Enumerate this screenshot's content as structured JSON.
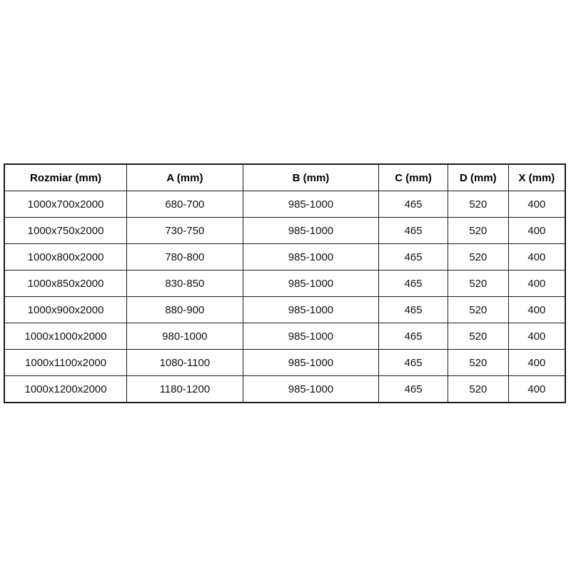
{
  "chart_data": {
    "type": "table",
    "title": "",
    "columns": [
      "Rozmiar (mm)",
      "A (mm)",
      "B (mm)",
      "C (mm)",
      "D (mm)",
      "X (mm)"
    ],
    "rows": [
      [
        "1000x700x2000",
        "680-700",
        "985-1000",
        "465",
        "520",
        "400"
      ],
      [
        "1000x750x2000",
        "730-750",
        "985-1000",
        "465",
        "520",
        "400"
      ],
      [
        "1000x800x2000",
        "780-800",
        "985-1000",
        "465",
        "520",
        "400"
      ],
      [
        "1000x850x2000",
        "830-850",
        "985-1000",
        "465",
        "520",
        "400"
      ],
      [
        "1000x900x2000",
        "880-900",
        "985-1000",
        "465",
        "520",
        "400"
      ],
      [
        "1000x1000x2000",
        "980-1000",
        "985-1000",
        "465",
        "520",
        "400"
      ],
      [
        "1000x1100x2000",
        "1080-1100",
        "985-1000",
        "465",
        "520",
        "400"
      ],
      [
        "1000x1200x2000",
        "1180-1200",
        "985-1000",
        "465",
        "520",
        "400"
      ]
    ],
    "layout": {
      "grid": "all-borders",
      "header_row": true,
      "text_align": "center"
    }
  },
  "colors": {
    "background": "#ffffff",
    "border": "#1a1a1a",
    "header_text": "#000000",
    "cell_text": "#111111"
  }
}
